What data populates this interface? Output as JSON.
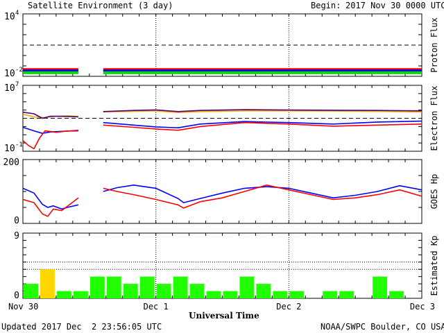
{
  "header": {
    "title": "Satellite Environment (3 day)",
    "begin_label": "Begin:",
    "begin_value": "2017 Nov 30 0000 UTC"
  },
  "footer": {
    "updated": "Updated 2017 Dec  2 23:56:05 UTC",
    "source": "NOAA/SWPC Boulder, CO USA"
  },
  "chart_data": {
    "type": "line",
    "x_axis": {
      "label": "Universal Time",
      "ticks": [
        "Nov 30",
        "Dec 1",
        "Dec 2",
        "Dec 3"
      ],
      "range_hours": [
        0,
        72
      ],
      "dotted_gridlines_hours": [
        24,
        48
      ]
    },
    "panels": [
      {
        "id": "proton",
        "ylabel": "Proton Flux",
        "scale": "log",
        "ylim": [
          0.01,
          10000
        ],
        "ytick_labels": [
          {
            "value": 10000,
            "label": "10",
            "exp": "4"
          },
          {
            "value": 0.01,
            "label": "10",
            "exp": "-2"
          }
        ],
        "threshold": 10,
        "gaps_hours": [
          [
            10,
            14.5
          ]
        ],
        "series": [
          {
            "color": "#ff0000",
            "values": [
              [
                0,
                0.045
              ],
              [
                10,
                0.045
              ],
              [
                14.5,
                0.045
              ],
              [
                72,
                0.045
              ]
            ]
          },
          {
            "color": "#0000ff",
            "values": [
              [
                0,
                0.032
              ],
              [
                10,
                0.032
              ],
              [
                14.5,
                0.032
              ],
              [
                72,
                0.032
              ]
            ]
          },
          {
            "color": "#00dd00",
            "values": [
              [
                0,
                0.022
              ],
              [
                10,
                0.022
              ],
              [
                14.5,
                0.022
              ],
              [
                72,
                0.022
              ]
            ]
          }
        ]
      },
      {
        "id": "electron",
        "ylabel": "Electron Flux",
        "scale": "log",
        "ylim": [
          0.1,
          10000000
        ],
        "ytick_labels": [
          {
            "value": 10000000,
            "label": "10",
            "exp": "7"
          },
          {
            "value": 0.1,
            "label": "10",
            "exp": "-1"
          }
        ],
        "threshold": 1000,
        "gaps_hours": [
          [
            10,
            14.5
          ]
        ],
        "series": [
          {
            "color": "#ffa500",
            "values": [
              [
                0,
                3000
              ],
              [
                2,
                1500
              ],
              [
                4,
                1200
              ],
              [
                6,
                1800
              ],
              [
                8,
                2000
              ],
              [
                10,
                1700
              ],
              [
                14.5,
                6000
              ],
              [
                20,
                7000
              ],
              [
                24,
                8000
              ],
              [
                28,
                5000
              ],
              [
                32,
                6500
              ],
              [
                40,
                8000
              ],
              [
                48,
                8000
              ],
              [
                56,
                7500
              ],
              [
                64,
                7000
              ],
              [
                72,
                6000
              ]
            ]
          },
          {
            "color": "#4b0082",
            "values": [
              [
                0,
                5500
              ],
              [
                2,
                3500
              ],
              [
                3.5,
                1000
              ],
              [
                5,
                1800
              ],
              [
                8,
                1700
              ],
              [
                10,
                1500
              ],
              [
                14.5,
                6500
              ],
              [
                20,
                9000
              ],
              [
                24,
                10500
              ],
              [
                28,
                6500
              ],
              [
                32,
                9000
              ],
              [
                40,
                11000
              ],
              [
                48,
                10000
              ],
              [
                56,
                9500
              ],
              [
                64,
                9000
              ],
              [
                72,
                8000
              ]
            ]
          },
          {
            "color": "#0000ff",
            "values": [
              [
                0,
                80
              ],
              [
                2,
                30
              ],
              [
                3.5,
                15
              ],
              [
                5,
                22
              ],
              [
                8,
                28
              ],
              [
                10,
                30
              ],
              [
                14.5,
                300
              ],
              [
                20,
                150
              ],
              [
                24,
                90
              ],
              [
                28,
                70
              ],
              [
                32,
                200
              ],
              [
                40,
                400
              ],
              [
                48,
                300
              ],
              [
                56,
                200
              ],
              [
                64,
                350
              ],
              [
                72,
                450
              ]
            ]
          },
          {
            "color": "#ff0000",
            "values": [
              [
                0,
                2
              ],
              [
                1,
                0.5
              ],
              [
                2,
                0.2
              ],
              [
                3,
                4
              ],
              [
                4,
                30
              ],
              [
                6,
                20
              ],
              [
                8,
                28
              ],
              [
                10,
                35
              ],
              [
                14.5,
                150
              ],
              [
                20,
                80
              ],
              [
                24,
                50
              ],
              [
                28,
                35
              ],
              [
                32,
                100
              ],
              [
                40,
                300
              ],
              [
                48,
                200
              ],
              [
                56,
                110
              ],
              [
                64,
                150
              ],
              [
                72,
                200
              ]
            ]
          }
        ]
      },
      {
        "id": "hp",
        "ylabel": "GOES Hp",
        "scale": "linear",
        "ylim": [
          0,
          200
        ],
        "ytick_labels": [
          {
            "value": 200,
            "label": "200"
          },
          {
            "value": 0,
            "label": "0"
          }
        ],
        "gaps_hours": [
          [
            10,
            14.5
          ]
        ],
        "series": [
          {
            "color": "#0000ff",
            "values": [
              [
                0,
                110
              ],
              [
                2,
                95
              ],
              [
                3.5,
                60
              ],
              [
                4.5,
                50
              ],
              [
                5.5,
                55
              ],
              [
                7,
                45
              ],
              [
                8,
                50
              ],
              [
                10,
                58
              ],
              [
                14.5,
                100
              ],
              [
                17,
                112
              ],
              [
                20,
                120
              ],
              [
                24,
                110
              ],
              [
                28,
                78
              ],
              [
                29,
                65
              ],
              [
                32,
                78
              ],
              [
                36,
                95
              ],
              [
                40,
                110
              ],
              [
                44,
                115
              ],
              [
                48,
                110
              ],
              [
                52,
                95
              ],
              [
                56,
                80
              ],
              [
                60,
                88
              ],
              [
                64,
                100
              ],
              [
                68,
                118
              ],
              [
                72,
                105
              ]
            ]
          },
          {
            "color": "#ff0000",
            "values": [
              [
                0,
                75
              ],
              [
                2,
                65
              ],
              [
                3.5,
                30
              ],
              [
                4.5,
                22
              ],
              [
                5.5,
                45
              ],
              [
                7,
                40
              ],
              [
                10,
                80
              ],
              [
                14.5,
                110
              ],
              [
                17,
                100
              ],
              [
                20,
                90
              ],
              [
                24,
                75
              ],
              [
                28,
                58
              ],
              [
                29,
                48
              ],
              [
                32,
                68
              ],
              [
                36,
                80
              ],
              [
                40,
                100
              ],
              [
                44,
                120
              ],
              [
                48,
                105
              ],
              [
                52,
                90
              ],
              [
                56,
                75
              ],
              [
                60,
                80
              ],
              [
                64,
                90
              ],
              [
                68,
                105
              ],
              [
                72,
                85
              ]
            ]
          }
        ]
      },
      {
        "id": "kp",
        "ylabel": "Estimated Kp",
        "type": "bar",
        "scale": "linear",
        "ylim": [
          0,
          9
        ],
        "ytick_labels": [
          {
            "value": 9,
            "label": "9"
          },
          {
            "value": 0,
            "label": "0"
          }
        ],
        "dotted_levels": [
          5,
          4
        ],
        "bar_hours": 3,
        "values": [
          2,
          4,
          1,
          1,
          3,
          3,
          2,
          3,
          2,
          3,
          2,
          1,
          1,
          3,
          2,
          1,
          1,
          0,
          1,
          1,
          0,
          3,
          1,
          0
        ],
        "colors": [
          "#22ff00",
          "#ffd700",
          "#22ff00",
          "#22ff00",
          "#22ff00",
          "#22ff00",
          "#22ff00",
          "#22ff00",
          "#22ff00",
          "#22ff00",
          "#22ff00",
          "#22ff00",
          "#22ff00",
          "#22ff00",
          "#22ff00",
          "#22ff00",
          "#22ff00",
          "#22ff00",
          "#22ff00",
          "#22ff00",
          "#22ff00",
          "#22ff00",
          "#22ff00",
          "#22ff00"
        ]
      }
    ]
  }
}
